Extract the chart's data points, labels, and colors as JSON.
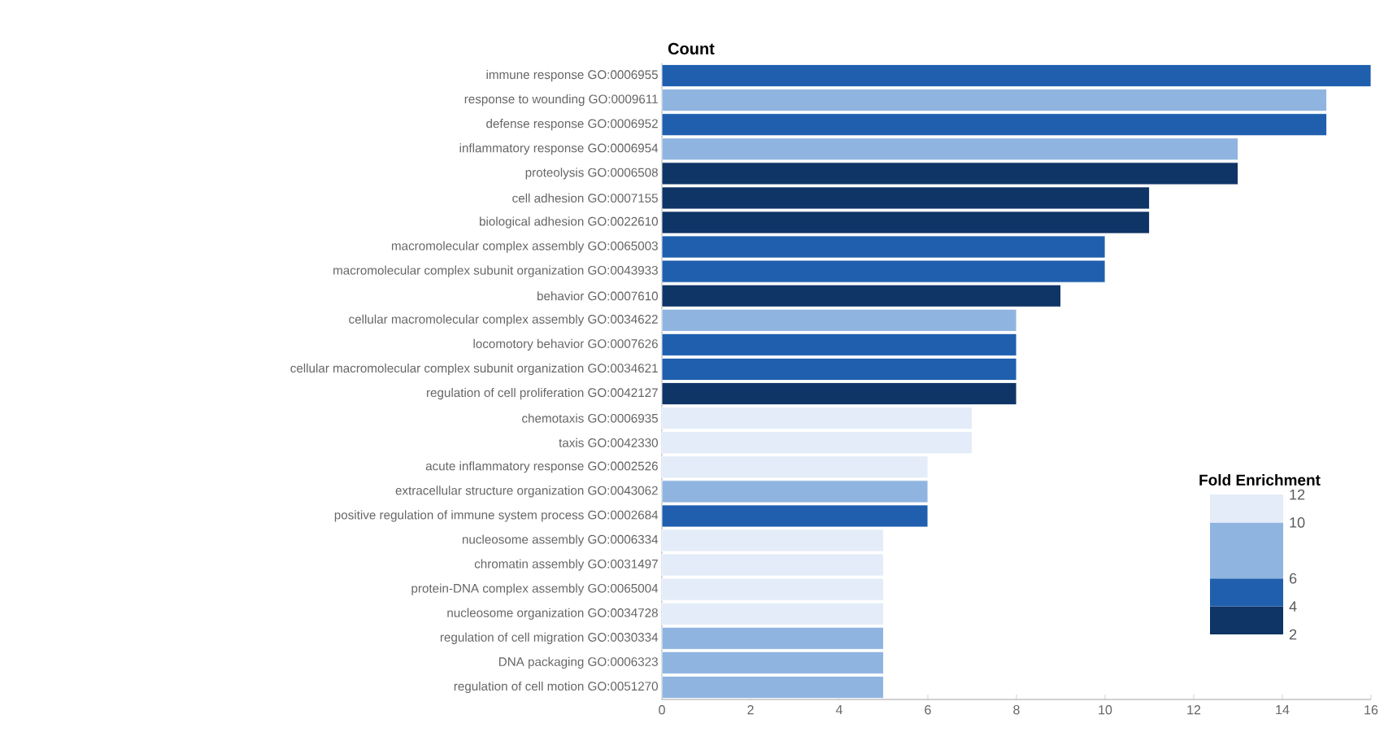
{
  "chart_data": [
    {
      "type": "bar",
      "orientation": "horizontal",
      "xlabel": "Count",
      "categories": [
        "immune response GO:0006955",
        "response to wounding GO:0009611",
        "defense response GO:0006952",
        "inflammatory response GO:0006954",
        "proteolysis GO:0006508",
        "cell adhesion GO:0007155",
        "biological adhesion GO:0022610",
        "macromolecular complex assembly GO:0065003",
        "macromolecular complex subunit organization GO:0043933",
        "behavior GO:0007610",
        "cellular macromolecular complex assembly GO:0034622",
        "locomotory behavior GO:0007626",
        "cellular macromolecular complex subunit organization GO:0034621",
        "regulation of cell proliferation GO:0042127",
        "chemotaxis GO:0006935",
        "taxis GO:0042330",
        "acute inflammatory response GO:0002526",
        "extracellular structure organization GO:0043062",
        "positive regulation of immune system process GO:0002684",
        "nucleosome assembly GO:0006334",
        "chromatin assembly GO:0031497",
        "protein-DNA complex assembly GO:0065004",
        "nucleosome organization GO:0034728",
        "regulation of cell migration GO:0030334",
        "DNA packaging GO:0006323",
        "regulation of cell motion GO:0051270"
      ],
      "values": [
        16,
        15,
        15,
        13,
        13,
        11,
        11,
        10,
        10,
        9,
        8,
        8,
        8,
        8,
        7,
        7,
        6,
        6,
        6,
        5,
        5,
        5,
        5,
        5,
        5,
        5
      ],
      "colors": [
        "#1f5fae",
        "#8fb4e0",
        "#1f5fae",
        "#8fb4e0",
        "#0f3466",
        "#0f3466",
        "#0f3466",
        "#1f5fae",
        "#1f5fae",
        "#0f3466",
        "#8fb4e0",
        "#1f5fae",
        "#1f5fae",
        "#0f3466",
        "#e3ecf8",
        "#e3ecf8",
        "#e3ecf8",
        "#8fb4e0",
        "#1f5fae",
        "#e3ecf8",
        "#e3ecf8",
        "#e3ecf8",
        "#e3ecf8",
        "#8fb4e0",
        "#8fb4e0",
        "#8fb4e0"
      ],
      "xlim": [
        0,
        16
      ],
      "xticks": [
        0,
        2,
        4,
        6,
        8,
        10,
        12,
        14,
        16
      ],
      "grid": false
    },
    {
      "type": "bar",
      "title": "Fold Enrichment",
      "categories": [
        null
      ],
      "series": [
        {
          "color": "#0f3466",
          "base": [
            2
          ],
          "values": [
            2
          ]
        },
        {
          "color": "#1f5fae",
          "base": [
            4
          ],
          "values": [
            2
          ]
        },
        {
          "color": "#8fb4e0",
          "base": [
            6
          ],
          "values": [
            4
          ]
        },
        {
          "color": "#e3ecf8",
          "base": [
            10
          ],
          "values": [
            2
          ]
        }
      ],
      "ylim": [
        2,
        12
      ],
      "yticks": [
        2,
        4,
        6,
        10,
        12
      ]
    }
  ]
}
